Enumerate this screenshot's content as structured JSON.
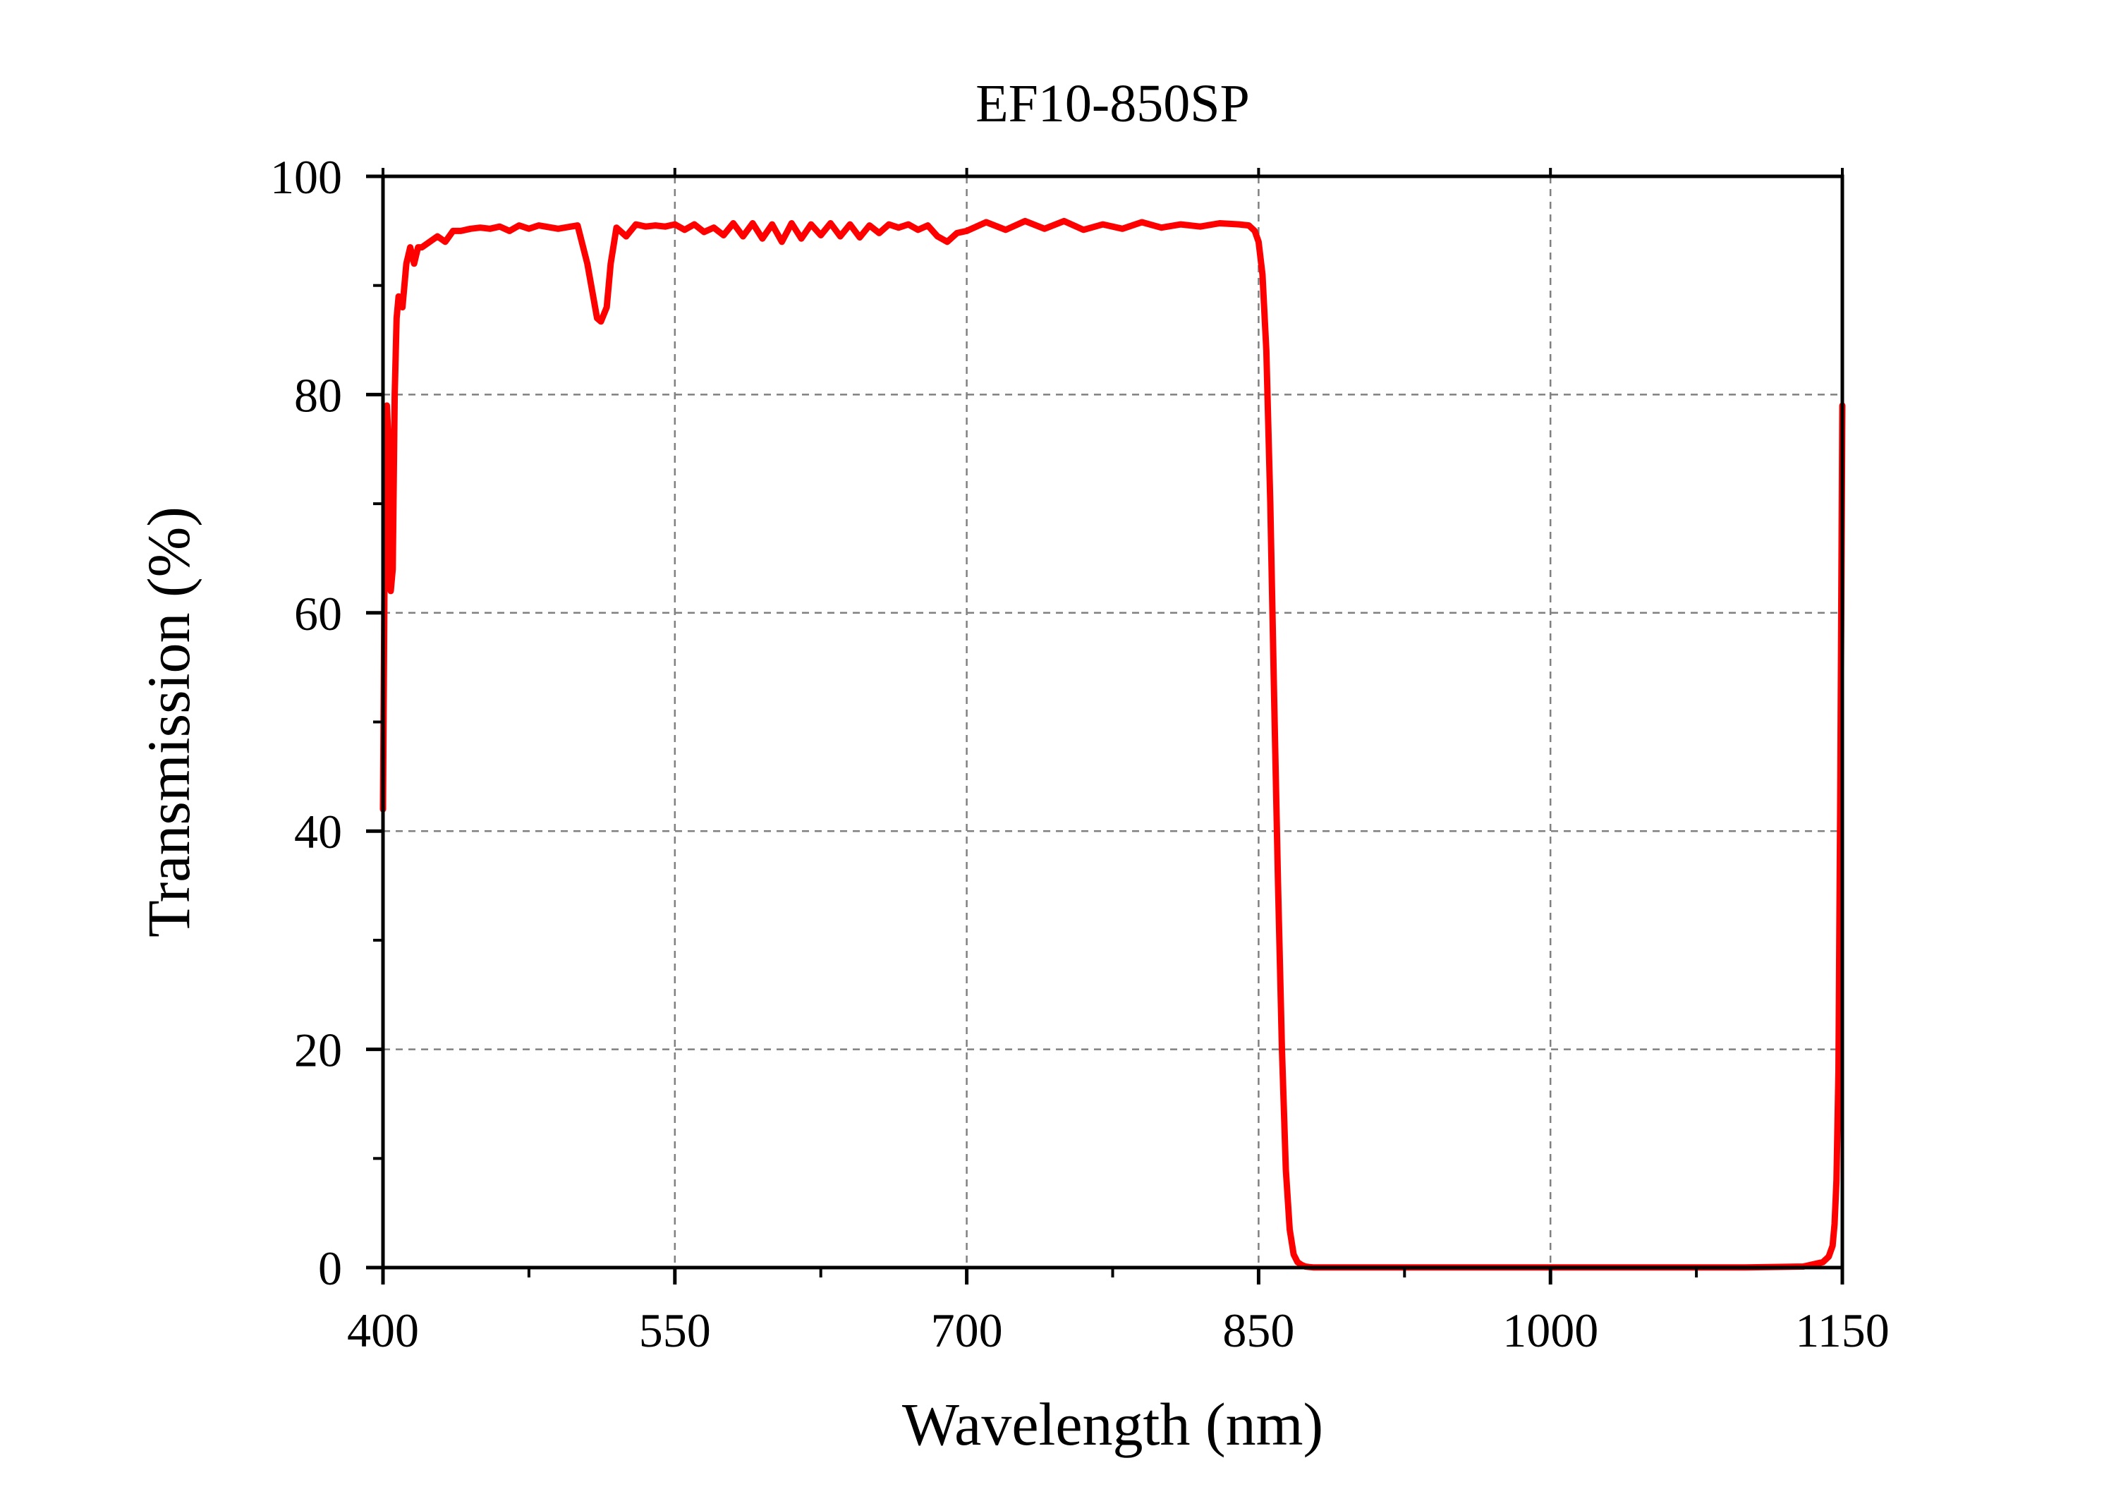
{
  "chart_data": {
    "type": "line",
    "title": "EF10-850SP",
    "xlabel": "Wavelength (nm)",
    "ylabel": "Transmission (%)",
    "xlim": [
      400,
      1150
    ],
    "ylim": [
      0,
      100
    ],
    "x_ticks": [
      400,
      550,
      700,
      850,
      1000,
      1150
    ],
    "x_tick_labels": [
      "400",
      "550",
      "700",
      "850",
      "1000",
      "1150"
    ],
    "y_ticks": [
      0,
      20,
      40,
      60,
      80,
      100
    ],
    "y_tick_labels": [
      "0",
      "20",
      "40",
      "60",
      "80",
      "100"
    ],
    "grid": true,
    "legend": "none",
    "colors": {
      "line": "#ff0000",
      "axis": "#000000",
      "grid": "#808080"
    },
    "series": [
      {
        "x": [
          400,
          401,
          402,
          403,
          404,
          405,
          406,
          407,
          408,
          410,
          412,
          414,
          416,
          418,
          420,
          424,
          428,
          432,
          436,
          440,
          445,
          450,
          455,
          460,
          465,
          470,
          475,
          480,
          490,
          500,
          505,
          510,
          512,
          515,
          517,
          520,
          525,
          530,
          535,
          540,
          545,
          550,
          555,
          560,
          565,
          570,
          575,
          580,
          585,
          590,
          595,
          600,
          605,
          610,
          615,
          620,
          625,
          630,
          635,
          640,
          645,
          650,
          655,
          660,
          665,
          670,
          675,
          680,
          685,
          690,
          695,
          700,
          710,
          720,
          730,
          740,
          750,
          760,
          770,
          780,
          790,
          800,
          810,
          820,
          830,
          840,
          845,
          848,
          850,
          852,
          854,
          856,
          858,
          860,
          862,
          864,
          866,
          868,
          870,
          872,
          874,
          876,
          878,
          880,
          885,
          890,
          900,
          950,
          1000,
          1050,
          1100,
          1130,
          1140,
          1143,
          1145,
          1146,
          1147,
          1148,
          1149,
          1150
        ],
        "y": [
          42,
          70,
          79,
          75,
          62,
          64,
          80,
          87,
          89,
          88,
          92,
          93.5,
          92,
          93.5,
          93.5,
          94,
          94.5,
          94,
          95,
          95,
          95.2,
          95.3,
          95.2,
          95.4,
          95,
          95.5,
          95.2,
          95.5,
          95.2,
          95.5,
          92,
          87,
          86.7,
          88,
          92,
          95.3,
          94.5,
          95.6,
          95.4,
          95.5,
          95.4,
          95.6,
          95.1,
          95.6,
          94.9,
          95.3,
          94.6,
          95.7,
          94.5,
          95.7,
          94.3,
          95.6,
          94,
          95.7,
          94.3,
          95.6,
          94.6,
          95.7,
          94.5,
          95.6,
          94.4,
          95.5,
          94.8,
          95.6,
          95.3,
          95.6,
          95.1,
          95.5,
          94.5,
          94,
          94.8,
          95,
          95.8,
          95.1,
          95.9,
          95.2,
          95.9,
          95.1,
          95.6,
          95.2,
          95.8,
          95.3,
          95.6,
          95.4,
          95.7,
          95.6,
          95.5,
          95,
          94,
          91,
          84,
          70,
          52,
          35,
          20,
          9,
          3.5,
          1.2,
          0.5,
          0.25,
          0.1,
          0.05,
          0.02,
          0.02,
          0.02,
          0.02,
          0.02,
          0.02,
          0.02,
          0.02,
          0.02,
          0.1,
          0.5,
          1,
          2,
          4,
          8,
          18,
          45,
          79
        ]
      }
    ]
  }
}
